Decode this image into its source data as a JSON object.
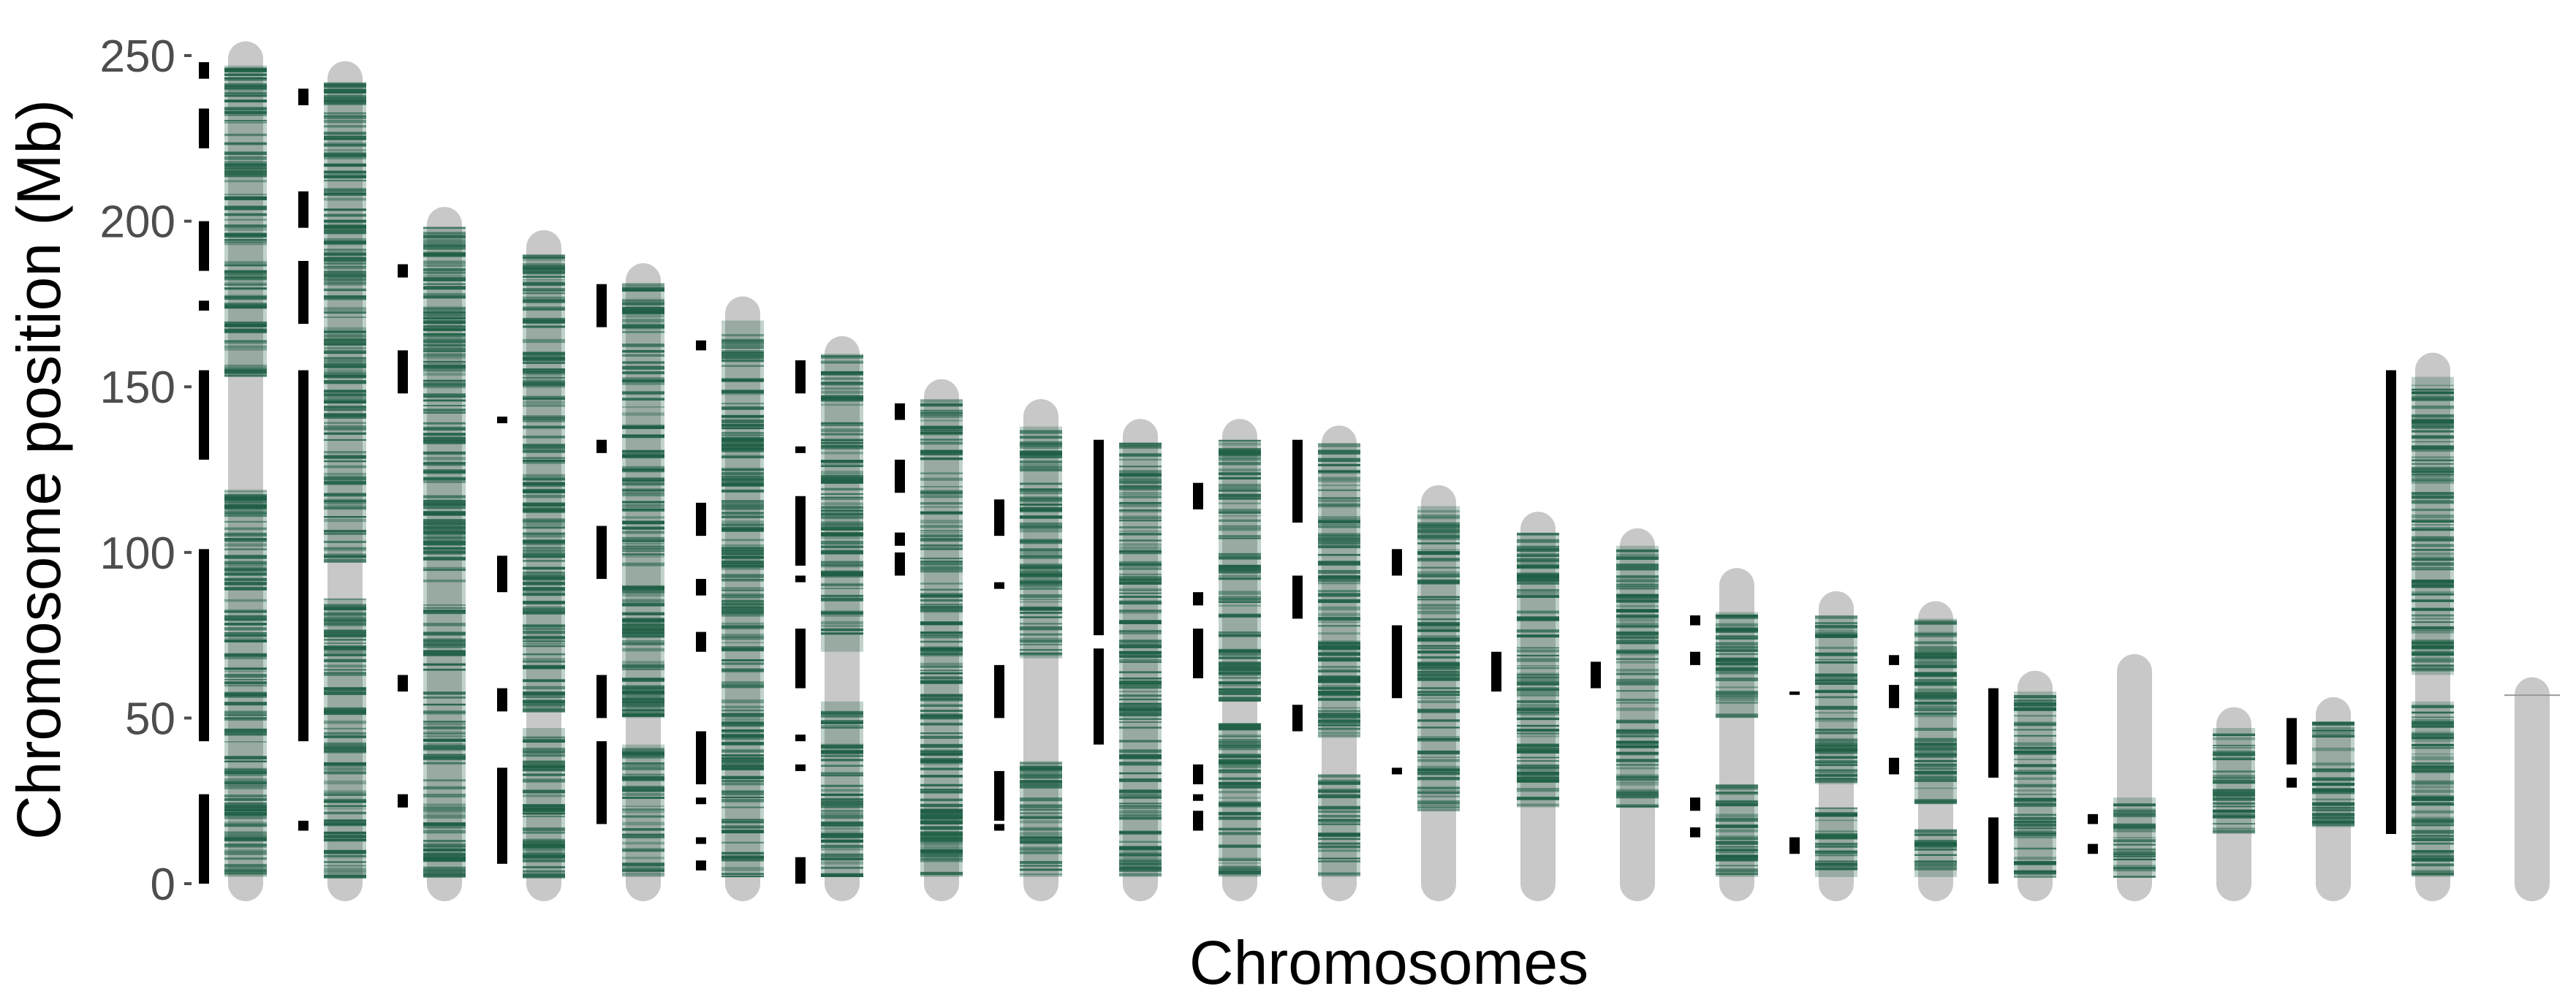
{
  "chart_data": {
    "type": "chromosome-ideogram",
    "title": "",
    "xlabel": "Chromosomes",
    "ylabel": "Chromosome position (Mb)",
    "ylim": [
      0,
      250
    ],
    "y_ticks": [
      0,
      50,
      100,
      150,
      200,
      250
    ],
    "grid": false,
    "legend": "none",
    "colors": {
      "chromosome": "#c8c8c8",
      "marker": "#1f5f45",
      "region_bar": "#000000",
      "tick_text": "#4d4d4d"
    },
    "chromosomes": [
      {
        "length_mb": 249,
        "marker_segments": [
          [
            2,
            119
          ],
          [
            153,
            247
          ]
        ],
        "region_bars": [
          [
            0,
            27
          ],
          [
            43,
            101
          ],
          [
            128,
            155
          ],
          [
            173,
            176
          ],
          [
            185,
            200
          ],
          [
            222,
            234
          ],
          [
            243,
            248
          ]
        ]
      },
      {
        "length_mb": 243,
        "marker_segments": [
          [
            2,
            86
          ],
          [
            97,
            242
          ]
        ],
        "region_bars": [
          [
            16,
            19
          ],
          [
            43,
            155
          ],
          [
            169,
            188
          ],
          [
            198,
            209
          ],
          [
            235,
            240
          ]
        ]
      },
      {
        "length_mb": 199,
        "marker_segments": [
          [
            2,
            198
          ]
        ],
        "region_bars": [
          [
            23,
            27
          ],
          [
            58,
            63
          ],
          [
            148,
            161
          ],
          [
            183,
            187
          ]
        ]
      },
      {
        "length_mb": 192,
        "marker_segments": [
          [
            2,
            47
          ],
          [
            52,
            190
          ]
        ],
        "region_bars": [
          [
            6,
            35
          ],
          [
            52,
            59
          ],
          [
            88,
            99
          ],
          [
            139,
            141
          ]
        ]
      },
      {
        "length_mb": 182,
        "marker_segments": [
          [
            2,
            42
          ],
          [
            50,
            181
          ]
        ],
        "region_bars": [
          [
            18,
            43
          ],
          [
            50,
            63
          ],
          [
            92,
            108
          ],
          [
            130,
            134
          ],
          [
            168,
            181
          ]
        ]
      },
      {
        "length_mb": 172,
        "marker_segments": [
          [
            2,
            170
          ]
        ],
        "region_bars": [
          [
            4,
            7
          ],
          [
            12,
            14
          ],
          [
            24,
            26
          ],
          [
            30,
            46
          ],
          [
            70,
            76
          ],
          [
            87,
            92
          ],
          [
            105,
            115
          ],
          [
            161,
            164
          ]
        ]
      },
      {
        "length_mb": 160,
        "marker_segments": [
          [
            2,
            55
          ],
          [
            70,
            160
          ]
        ],
        "region_bars": [
          [
            0,
            8
          ],
          [
            34,
            36
          ],
          [
            43,
            45
          ],
          [
            59,
            77
          ],
          [
            91,
            93
          ],
          [
            96,
            117
          ],
          [
            130,
            132
          ],
          [
            148,
            158
          ]
        ]
      },
      {
        "length_mb": 147,
        "marker_segments": [
          [
            2,
            146
          ]
        ],
        "region_bars": [
          [
            93,
            100
          ],
          [
            102,
            106
          ],
          [
            118,
            128
          ],
          [
            140,
            145
          ]
        ]
      },
      {
        "length_mb": 141,
        "marker_segments": [
          [
            2,
            37
          ],
          [
            68,
            138
          ]
        ],
        "region_bars": [
          [
            16,
            18
          ],
          [
            19,
            34
          ],
          [
            50,
            66
          ],
          [
            89,
            91
          ],
          [
            105,
            116
          ]
        ]
      },
      {
        "length_mb": 135,
        "marker_segments": [
          [
            2,
            133
          ]
        ],
        "region_bars": [
          [
            42,
            71
          ],
          [
            75,
            134
          ]
        ]
      },
      {
        "length_mb": 135,
        "marker_segments": [
          [
            2,
            48
          ],
          [
            55,
            134
          ]
        ],
        "region_bars": [
          [
            16,
            22
          ],
          [
            25,
            27
          ],
          [
            30,
            36
          ],
          [
            62,
            77
          ],
          [
            84,
            88
          ],
          [
            113,
            121
          ]
        ]
      },
      {
        "length_mb": 133,
        "marker_segments": [
          [
            2,
            33
          ],
          [
            44,
            133
          ]
        ],
        "region_bars": [
          [
            46,
            54
          ],
          [
            80,
            93
          ],
          [
            109,
            134
          ]
        ]
      },
      {
        "length_mb": 115,
        "marker_segments": [
          [
            22,
            114
          ]
        ],
        "region_bars": [
          [
            33,
            35
          ],
          [
            56,
            78
          ],
          [
            93,
            101
          ]
        ]
      },
      {
        "length_mb": 107,
        "marker_segments": [
          [
            23,
            106
          ]
        ],
        "region_bars": [
          [
            58,
            70
          ]
        ]
      },
      {
        "length_mb": 102,
        "marker_segments": [
          [
            23,
            102
          ]
        ],
        "region_bars": [
          [
            59,
            67
          ]
        ]
      },
      {
        "length_mb": 90,
        "marker_segments": [
          [
            2,
            30
          ],
          [
            50,
            82
          ]
        ],
        "region_bars": [
          [
            14,
            17
          ],
          [
            22,
            26
          ],
          [
            66,
            70
          ],
          [
            78,
            81
          ]
        ]
      },
      {
        "length_mb": 83,
        "marker_segments": [
          [
            2,
            23
          ],
          [
            30,
            81
          ]
        ],
        "region_bars": [
          [
            9,
            14
          ],
          [
            57,
            58
          ]
        ]
      },
      {
        "length_mb": 80,
        "marker_segments": [
          [
            2,
            16
          ],
          [
            24,
            80
          ]
        ],
        "region_bars": [
          [
            33,
            38
          ],
          [
            53,
            60
          ],
          [
            66,
            69
          ]
        ]
      },
      {
        "length_mb": 59,
        "marker_segments": [
          [
            2,
            58
          ]
        ],
        "region_bars": [
          [
            0,
            20
          ],
          [
            32,
            59
          ]
        ]
      },
      {
        "length_mb": 64,
        "marker_segments": [
          [
            2,
            26
          ]
        ],
        "region_bars": [
          [
            9,
            12
          ],
          [
            18,
            21
          ]
        ]
      },
      {
        "length_mb": 48,
        "marker_segments": [
          [
            15,
            47
          ]
        ],
        "region_bars": []
      },
      {
        "length_mb": 51,
        "marker_segments": [
          [
            17,
            49
          ]
        ],
        "region_bars": [
          [
            29,
            32
          ],
          [
            36,
            50
          ]
        ]
      },
      {
        "length_mb": 155,
        "marker_segments": [
          [
            2,
            55
          ],
          [
            63,
            153
          ]
        ],
        "region_bars": [
          [
            15,
            155
          ]
        ]
      },
      {
        "length_mb": 57,
        "marker_segments": [],
        "region_bars": []
      }
    ]
  }
}
